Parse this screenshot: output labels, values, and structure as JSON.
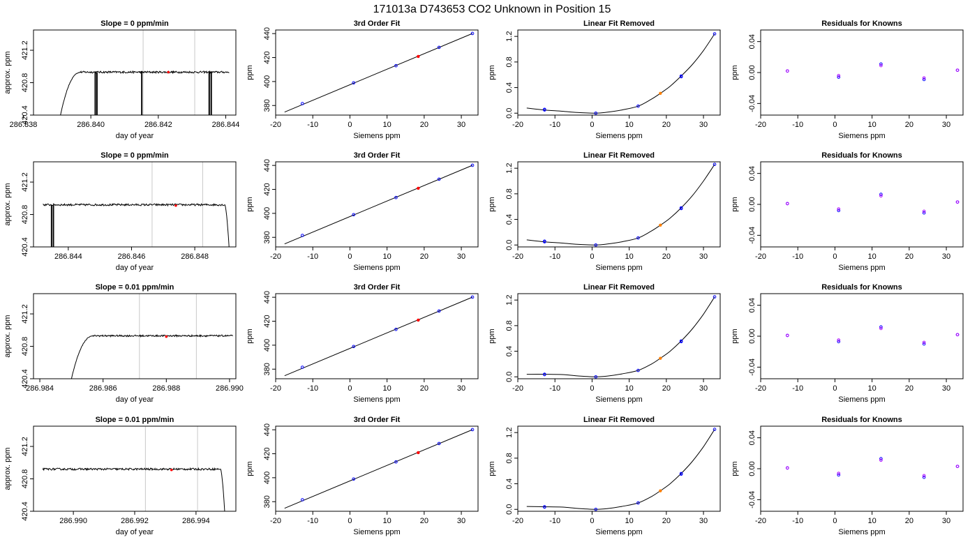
{
  "figure": {
    "title": "171013a      D743653    CO2 Unknown in Position  15"
  },
  "colors": {
    "line": "#000000",
    "axis": "#000000",
    "vline": "#c8c8c8",
    "known": "#0000ff",
    "unknown_fit": "#ff0000",
    "unknown_lin": "#ff7f00",
    "residual_a": "#0000ff",
    "residual_b": "#b000ff"
  },
  "chart_data": [
    {
      "id": "r0c0",
      "type": "line",
      "title": "Slope =  0  ppm/min",
      "xlabel": "day of year",
      "ylabel": "approx. ppm",
      "xlim": [
        286.8383,
        286.8443
      ],
      "ylim": [
        420.4,
        421.45
      ],
      "xticks": [
        286.838,
        286.84,
        286.842,
        286.844
      ],
      "xtick_labels": [
        "286.838",
        "286.840",
        "286.842",
        "286.844"
      ],
      "yticks": [
        420.4,
        420.8,
        421.2
      ],
      "ytick_labels": [
        "420.4",
        "420.8",
        "421.2"
      ],
      "trace": {
        "x_start": 286.8391,
        "x_end": 286.8441,
        "level": 420.93,
        "noise": 0.012,
        "rise_start": 286.8391,
        "rise_end": 286.8397,
        "rise_from": 420.4,
        "fall_start": null,
        "fall_to": null,
        "dips": [
          286.84012,
          286.84017,
          286.8415,
          286.8435,
          286.84356
        ]
      },
      "vlines": [
        286.84155,
        286.84308
      ],
      "marker": {
        "x": 286.8423,
        "y": 420.93
      }
    },
    {
      "id": "r0c1",
      "type": "scatter",
      "title": "3rd Order Fit",
      "xlabel": "Siemens ppm",
      "ylabel": "ppm",
      "xlim": [
        -20,
        34.5
      ],
      "ylim": [
        372,
        443
      ],
      "xticks": [
        -20,
        -10,
        0,
        10,
        20,
        30
      ],
      "xtick_labels": [
        "-20",
        "-10",
        "0",
        "10",
        "20",
        "30"
      ],
      "yticks": [
        380,
        400,
        420,
        440
      ],
      "ytick_labels": [
        "380",
        "400",
        "420",
        "440"
      ],
      "curve": {
        "x": [
          -17.6,
          33
        ],
        "y": [
          374.5,
          440.1
        ]
      },
      "knowns": {
        "x": [
          -12.8,
          1,
          12.4,
          24,
          33
        ],
        "y": [
          381.6,
          398.9,
          413.2,
          428.5,
          440.1
        ]
      },
      "unknown": {
        "x": 18.4,
        "y": 420.9
      }
    },
    {
      "id": "r0c2",
      "type": "scatter",
      "title": "Linear Fit Removed",
      "xlabel": "Siemens ppm",
      "ylabel": "ppm",
      "xlim": [
        -20,
        34.5
      ],
      "ylim": [
        -0.03,
        1.3
      ],
      "xticks": [
        -20,
        -10,
        0,
        10,
        20,
        30
      ],
      "xtick_labels": [
        "-20",
        "-10",
        "0",
        "10",
        "20",
        "30"
      ],
      "yticks": [
        0.0,
        0.4,
        0.8,
        1.2
      ],
      "ytick_labels": [
        "0.0",
        "0.4",
        "0.8",
        "1.2"
      ],
      "curve": {
        "x": [
          -17.6,
          -12.8,
          -8,
          -4,
          1,
          4,
          8,
          12.4,
          16,
          18.4,
          21,
          24,
          27,
          30,
          33
        ],
        "y": [
          0.08,
          0.05,
          0.03,
          0.01,
          0.0,
          0.015,
          0.05,
          0.11,
          0.22,
          0.31,
          0.42,
          0.58,
          0.76,
          0.98,
          1.24
        ]
      },
      "knowns": {
        "x": [
          -12.8,
          -12.8,
          1,
          12.4,
          24,
          24,
          33
        ],
        "y": [
          0.06,
          0.05,
          0.0,
          0.11,
          0.58,
          0.57,
          1.24
        ]
      },
      "unknown": {
        "x": 18.4,
        "y": 0.31
      }
    },
    {
      "id": "r0c3",
      "type": "scatter",
      "title": "Residuals for Knowns",
      "xlabel": "Siemens ppm",
      "ylabel": "ppm",
      "xlim": [
        -20,
        34.5
      ],
      "ylim": [
        -0.055,
        0.055
      ],
      "xticks": [
        -20,
        -10,
        0,
        10,
        20,
        30
      ],
      "xtick_labels": [
        "-20",
        "-10",
        "0",
        "10",
        "20",
        "30"
      ],
      "yticks": [
        -0.04,
        0.0,
        0.04
      ],
      "ytick_labels": [
        "-0.04",
        "0.00",
        "0.04"
      ],
      "residuals_a": {
        "x": [
          -12.8,
          1,
          12.4,
          24,
          33
        ],
        "y": [
          0.002,
          -0.006,
          0.011,
          -0.009,
          0.003
        ]
      },
      "residuals_b": {
        "x": [
          -12.8,
          1,
          12.4,
          24,
          33
        ],
        "y": [
          0.002,
          -0.004,
          0.009,
          -0.007,
          0.003
        ]
      }
    },
    {
      "id": "r1c0",
      "type": "line",
      "title": "Slope =  0  ppm/min",
      "xlabel": "day of year",
      "ylabel": "approx. ppm",
      "xlim": [
        286.8429,
        286.8493
      ],
      "ylim": [
        420.4,
        421.45
      ],
      "xticks": [
        286.844,
        286.846,
        286.848
      ],
      "xtick_labels": [
        "286.844",
        "286.846",
        "286.848"
      ],
      "yticks": [
        420.4,
        420.8,
        421.2
      ],
      "ytick_labels": [
        "420.4",
        "420.8",
        "421.2"
      ],
      "trace": {
        "x_start": 286.8432,
        "x_end": 286.8491,
        "level": 420.92,
        "noise": 0.012,
        "rise_start": null,
        "rise_end": null,
        "rise_from": null,
        "fall_start": 286.84895,
        "fall_to": 420.4,
        "dips": [
          286.84346,
          286.84352
        ]
      },
      "vlines": [
        286.84665,
        286.84825
      ],
      "marker": {
        "x": 286.8474,
        "y": 420.91
      }
    },
    {
      "id": "r1c1",
      "type": "scatter",
      "title": "3rd Order Fit",
      "xlabel": "Siemens ppm",
      "ylabel": "ppm",
      "xlim": [
        -20,
        34.5
      ],
      "ylim": [
        372,
        443
      ],
      "xticks": [
        -20,
        -10,
        0,
        10,
        20,
        30
      ],
      "xtick_labels": [
        "-20",
        "-10",
        "0",
        "10",
        "20",
        "30"
      ],
      "yticks": [
        380,
        400,
        420,
        440
      ],
      "ytick_labels": [
        "380",
        "400",
        "420",
        "440"
      ],
      "curve": {
        "x": [
          -17.6,
          33
        ],
        "y": [
          374.5,
          440.1
        ]
      },
      "knowns": {
        "x": [
          -12.8,
          1,
          12.4,
          24,
          33
        ],
        "y": [
          381.6,
          398.9,
          413.2,
          428.5,
          440.1
        ]
      },
      "unknown": {
        "x": 18.4,
        "y": 420.9
      }
    },
    {
      "id": "r1c2",
      "type": "scatter",
      "title": "Linear Fit Removed",
      "xlabel": "Siemens ppm",
      "ylabel": "ppm",
      "xlim": [
        -20,
        34.5
      ],
      "ylim": [
        -0.03,
        1.3
      ],
      "xticks": [
        -20,
        -10,
        0,
        10,
        20,
        30
      ],
      "xtick_labels": [
        "-20",
        "-10",
        "0",
        "10",
        "20",
        "30"
      ],
      "yticks": [
        0.0,
        0.4,
        0.8,
        1.2
      ],
      "ytick_labels": [
        "0.0",
        "0.4",
        "0.8",
        "1.2"
      ],
      "curve": {
        "x": [
          -17.6,
          -12.8,
          -8,
          -4,
          1,
          4,
          8,
          12.4,
          16,
          18.4,
          21,
          24,
          27,
          30,
          33
        ],
        "y": [
          0.08,
          0.05,
          0.03,
          0.01,
          0.0,
          0.015,
          0.05,
          0.11,
          0.22,
          0.31,
          0.42,
          0.58,
          0.77,
          1.0,
          1.26
        ]
      },
      "knowns": {
        "x": [
          -12.8,
          -12.8,
          1,
          12.4,
          24,
          24,
          33
        ],
        "y": [
          0.06,
          0.05,
          0.0,
          0.11,
          0.58,
          0.57,
          1.26
        ]
      },
      "unknown": {
        "x": 18.4,
        "y": 0.31
      }
    },
    {
      "id": "r1c3",
      "type": "scatter",
      "title": "Residuals for Knowns",
      "xlabel": "Siemens ppm",
      "ylabel": "ppm",
      "xlim": [
        -20,
        34.5
      ],
      "ylim": [
        -0.055,
        0.055
      ],
      "xticks": [
        -20,
        -10,
        0,
        10,
        20,
        30
      ],
      "xtick_labels": [
        "-20",
        "-10",
        "0",
        "10",
        "20",
        "30"
      ],
      "yticks": [
        -0.04,
        0.0,
        0.04
      ],
      "ytick_labels": [
        "-0.04",
        "0.00",
        "0.04"
      ],
      "residuals_a": {
        "x": [
          -12.8,
          1,
          12.4,
          24,
          33
        ],
        "y": [
          0.001,
          -0.008,
          0.013,
          -0.011,
          0.003
        ]
      },
      "residuals_b": {
        "x": [
          -12.8,
          1,
          12.4,
          24,
          33
        ],
        "y": [
          0.001,
          -0.006,
          0.011,
          -0.009,
          0.003
        ]
      }
    },
    {
      "id": "r2c0",
      "type": "line",
      "title": "Slope =  0.01  ppm/min",
      "xlabel": "day of year",
      "ylabel": "approx. ppm",
      "xlim": [
        286.9838,
        286.9902
      ],
      "ylim": [
        420.4,
        421.45
      ],
      "xticks": [
        286.984,
        286.986,
        286.988,
        286.99
      ],
      "xtick_labels": [
        "286.984",
        "286.986",
        "286.988",
        "286.990"
      ],
      "yticks": [
        420.4,
        420.8,
        421.2
      ],
      "ytick_labels": [
        "420.4",
        "420.8",
        "421.2"
      ],
      "trace": {
        "x_start": 286.985,
        "x_end": 286.9901,
        "level": 420.93,
        "noise": 0.01,
        "rise_start": 286.985,
        "rise_end": 286.9857,
        "rise_from": 420.4,
        "fall_start": null,
        "fall_to": null,
        "dips": []
      },
      "vlines": [
        286.98715,
        286.98895
      ],
      "marker": {
        "x": 286.988,
        "y": 420.92
      }
    },
    {
      "id": "r2c1",
      "type": "scatter",
      "title": "3rd Order Fit",
      "xlabel": "Siemens ppm",
      "ylabel": "ppm",
      "xlim": [
        -20,
        34.5
      ],
      "ylim": [
        372,
        443
      ],
      "xticks": [
        -20,
        -10,
        0,
        10,
        20,
        30
      ],
      "xtick_labels": [
        "-20",
        "-10",
        "0",
        "10",
        "20",
        "30"
      ],
      "yticks": [
        380,
        400,
        420,
        440
      ],
      "ytick_labels": [
        "380",
        "400",
        "420",
        "440"
      ],
      "curve": {
        "x": [
          -17.6,
          33
        ],
        "y": [
          374.5,
          440.1
        ]
      },
      "knowns": {
        "x": [
          -12.8,
          1,
          12.4,
          24,
          33
        ],
        "y": [
          381.6,
          398.9,
          413.2,
          428.5,
          440.1
        ]
      },
      "unknown": {
        "x": 18.4,
        "y": 420.9
      }
    },
    {
      "id": "r2c2",
      "type": "scatter",
      "title": "Linear Fit Removed",
      "xlabel": "Siemens ppm",
      "ylabel": "ppm",
      "xlim": [
        -20,
        34.5
      ],
      "ylim": [
        -0.03,
        1.3
      ],
      "xticks": [
        -20,
        -10,
        0,
        10,
        20,
        30
      ],
      "xtick_labels": [
        "-20",
        "-10",
        "0",
        "10",
        "20",
        "30"
      ],
      "yticks": [
        0.0,
        0.4,
        0.8,
        1.2
      ],
      "ytick_labels": [
        "0.0",
        "0.4",
        "0.8",
        "1.2"
      ],
      "curve": {
        "x": [
          -17.6,
          -12.8,
          -8,
          -4,
          1,
          4,
          8,
          12.4,
          16,
          18.4,
          21,
          24,
          27,
          30,
          33
        ],
        "y": [
          0.04,
          0.04,
          0.035,
          0.015,
          0.0,
          0.01,
          0.045,
          0.1,
          0.2,
          0.29,
          0.4,
          0.56,
          0.75,
          0.98,
          1.25
        ]
      },
      "knowns": {
        "x": [
          -12.8,
          -12.8,
          1,
          12.4,
          24,
          24,
          33
        ],
        "y": [
          0.04,
          0.035,
          0.0,
          0.1,
          0.56,
          0.55,
          1.25
        ]
      },
      "unknown": {
        "x": 18.4,
        "y": 0.29
      }
    },
    {
      "id": "r2c3",
      "type": "scatter",
      "title": "Residuals for Knowns",
      "xlabel": "Siemens ppm",
      "ylabel": "ppm",
      "xlim": [
        -20,
        34.5
      ],
      "ylim": [
        -0.055,
        0.055
      ],
      "xticks": [
        -20,
        -10,
        0,
        10,
        20,
        30
      ],
      "xtick_labels": [
        "-20",
        "-10",
        "0",
        "10",
        "20",
        "30"
      ],
      "yticks": [
        -0.04,
        0.0,
        0.04
      ],
      "ytick_labels": [
        "-0.04",
        "0.00",
        "0.04"
      ],
      "residuals_a": {
        "x": [
          -12.8,
          1,
          12.4,
          24,
          33
        ],
        "y": [
          0.001,
          -0.007,
          0.012,
          -0.01,
          0.002
        ]
      },
      "residuals_b": {
        "x": [
          -12.8,
          1,
          12.4,
          24,
          33
        ],
        "y": [
          0.001,
          -0.005,
          0.01,
          -0.008,
          0.002
        ]
      }
    },
    {
      "id": "r3c0",
      "type": "line",
      "title": "Slope =  0.01  ppm/min",
      "xlabel": "day of year",
      "ylabel": "approx. ppm",
      "xlim": [
        286.9887,
        286.9953
      ],
      "ylim": [
        420.4,
        421.45
      ],
      "xticks": [
        286.99,
        286.992,
        286.994
      ],
      "xtick_labels": [
        "286.990",
        "286.992",
        "286.994"
      ],
      "yticks": [
        420.4,
        420.8,
        421.2
      ],
      "ytick_labels": [
        "420.4",
        "420.8",
        "421.2"
      ],
      "trace": {
        "x_start": 286.989,
        "x_end": 286.99495,
        "level": 420.92,
        "noise": 0.012,
        "rise_start": null,
        "rise_end": null,
        "rise_from": null,
        "fall_start": 286.9948,
        "fall_to": 420.4,
        "dips": []
      },
      "vlines": [
        286.99235,
        286.99405
      ],
      "marker": {
        "x": 286.9932,
        "y": 420.91
      }
    },
    {
      "id": "r3c1",
      "type": "scatter",
      "title": "3rd Order Fit",
      "xlabel": "Siemens ppm",
      "ylabel": "ppm",
      "xlim": [
        -20,
        34.5
      ],
      "ylim": [
        372,
        443
      ],
      "xticks": [
        -20,
        -10,
        0,
        10,
        20,
        30
      ],
      "xtick_labels": [
        "-20",
        "-10",
        "0",
        "10",
        "20",
        "30"
      ],
      "yticks": [
        380,
        400,
        420,
        440
      ],
      "ytick_labels": [
        "380",
        "400",
        "420",
        "440"
      ],
      "curve": {
        "x": [
          -17.6,
          33
        ],
        "y": [
          374.5,
          440.1
        ]
      },
      "knowns": {
        "x": [
          -12.8,
          1,
          12.4,
          24,
          33
        ],
        "y": [
          381.6,
          398.9,
          413.2,
          428.5,
          440.1
        ]
      },
      "unknown": {
        "x": 18.4,
        "y": 420.9
      }
    },
    {
      "id": "r3c2",
      "type": "scatter",
      "title": "Linear Fit Removed",
      "xlabel": "Siemens ppm",
      "ylabel": "ppm",
      "xlim": [
        -20,
        34.5
      ],
      "ylim": [
        -0.03,
        1.3
      ],
      "xticks": [
        -20,
        -10,
        0,
        10,
        20,
        30
      ],
      "xtick_labels": [
        "-20",
        "-10",
        "0",
        "10",
        "20",
        "30"
      ],
      "yticks": [
        0.0,
        0.4,
        0.8,
        1.2
      ],
      "ytick_labels": [
        "0.0",
        "0.4",
        "0.8",
        "1.2"
      ],
      "curve": {
        "x": [
          -17.6,
          -12.8,
          -8,
          -4,
          1,
          4,
          8,
          12.4,
          16,
          18.4,
          21,
          24,
          27,
          30,
          33
        ],
        "y": [
          0.045,
          0.04,
          0.035,
          0.015,
          0.0,
          0.01,
          0.045,
          0.1,
          0.2,
          0.29,
          0.4,
          0.56,
          0.75,
          0.98,
          1.25
        ]
      },
      "knowns": {
        "x": [
          -12.8,
          -12.8,
          1,
          12.4,
          24,
          24,
          33
        ],
        "y": [
          0.04,
          0.035,
          0.0,
          0.1,
          0.56,
          0.55,
          1.25
        ]
      },
      "unknown": {
        "x": 18.4,
        "y": 0.29
      }
    },
    {
      "id": "r3c3",
      "type": "scatter",
      "title": "Residuals for Knowns",
      "xlabel": "Siemens ppm",
      "ylabel": "ppm",
      "xlim": [
        -20,
        34.5
      ],
      "ylim": [
        -0.055,
        0.055
      ],
      "xticks": [
        -20,
        -10,
        0,
        10,
        20,
        30
      ],
      "xtick_labels": [
        "-20",
        "-10",
        "0",
        "10",
        "20",
        "30"
      ],
      "yticks": [
        -0.04,
        0.0,
        0.04
      ],
      "ytick_labels": [
        "-0.04",
        "0.00",
        "0.04"
      ],
      "residuals_a": {
        "x": [
          -12.8,
          1,
          12.4,
          24,
          33
        ],
        "y": [
          0.001,
          -0.008,
          0.013,
          -0.011,
          0.003
        ]
      },
      "residuals_b": {
        "x": [
          -12.8,
          1,
          12.4,
          24,
          33
        ],
        "y": [
          0.001,
          -0.006,
          0.011,
          -0.009,
          0.003
        ]
      }
    }
  ]
}
